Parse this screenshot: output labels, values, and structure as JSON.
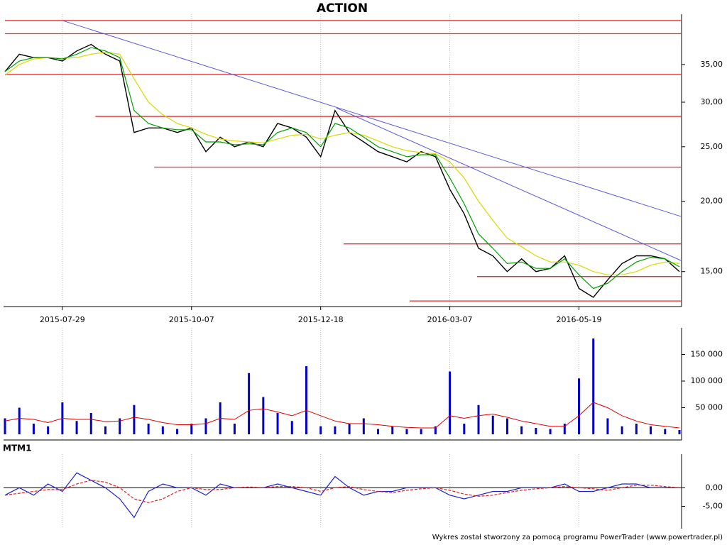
{
  "footer": "Wykres został stworzony za pomocą programu PowerTrader (www.powertrader.pl)",
  "chart_data": [
    {
      "type": "line",
      "title": "ACTION",
      "log": true,
      "categories": [
        null,
        null,
        null,
        null,
        "2015-07-29",
        null,
        null,
        null,
        null,
        null,
        null,
        null,
        null,
        "2015-10-07",
        null,
        null,
        null,
        null,
        null,
        null,
        null,
        null,
        "2015-12-18",
        null,
        null,
        null,
        null,
        null,
        null,
        null,
        null,
        "2016-03-07",
        null,
        null,
        null,
        null,
        null,
        null,
        null,
        null,
        "2016-05-19",
        null,
        null,
        null,
        null,
        null,
        null,
        null
      ],
      "ylim": [
        13,
        43
      ],
      "yticks": [
        {
          "value": 15,
          "label": "15,00"
        },
        {
          "value": 20,
          "label": "20,00"
        },
        {
          "value": 25,
          "label": "25,00"
        },
        {
          "value": 30,
          "label": "30,00"
        },
        {
          "value": 35,
          "label": "35,00"
        }
      ],
      "series": [
        {
          "color": "#000000",
          "values": [
            34,
            36.5,
            36,
            36,
            35.5,
            37,
            38,
            36.5,
            35.5,
            26.5,
            27,
            27,
            26.5,
            27,
            24.5,
            26,
            25,
            25.5,
            25,
            27.5,
            27,
            26,
            24,
            29,
            26.5,
            25.5,
            24.5,
            24,
            23.5,
            24.5,
            24,
            21,
            19,
            16.5,
            16,
            15,
            15.8,
            15,
            15.2,
            16,
            14,
            13.5,
            14.5,
            15.5,
            16,
            16,
            15.8,
            15
          ]
        },
        {
          "color": "#d8d800",
          "values": [
            33.5,
            35,
            35.8,
            36,
            35.9,
            36,
            36.5,
            36.8,
            36.5,
            33,
            30,
            28.5,
            27.5,
            27,
            26.3,
            25.8,
            25.6,
            25.5,
            25.4,
            25.8,
            26.2,
            26.3,
            25.8,
            26.2,
            26.5,
            26.2,
            25.6,
            25,
            24.6,
            24.4,
            24.3,
            23.5,
            22,
            20,
            18.5,
            17.2,
            16.6,
            16,
            15.6,
            15.6,
            15.4,
            15,
            14.8,
            14.8,
            15,
            15.4,
            15.6,
            15.5
          ]
        },
        {
          "color": "#00a000",
          "values": [
            34,
            35.5,
            36,
            36,
            35.8,
            36.5,
            37.5,
            37,
            36,
            29,
            27.5,
            27,
            26.8,
            26.8,
            25.5,
            25.5,
            25.2,
            25.3,
            25.2,
            26.5,
            27,
            26.5,
            25,
            27.5,
            27,
            26,
            25,
            24.5,
            24,
            24.2,
            24.2,
            22,
            19.8,
            17.5,
            16.5,
            15.5,
            15.6,
            15.2,
            15.2,
            15.8,
            14.8,
            14,
            14.3,
            15,
            15.6,
            15.9,
            15.8,
            15.3
          ]
        }
      ],
      "levels": [
        {
          "value": 41.9,
          "start": 0
        },
        {
          "value": 39.7,
          "start": 0
        },
        {
          "value": 33.6,
          "start": 0
        },
        {
          "value": 28.3,
          "start": 6.3
        },
        {
          "value": 23.0,
          "start": 10.4
        },
        {
          "value": 16.8,
          "start": 23.6
        },
        {
          "value": 14.7,
          "start": 32.9
        },
        {
          "value": 13.3,
          "start": 28.2
        }
      ],
      "level_color": "#e03030",
      "trendlines": [
        [
          [
            4,
            41.9
          ],
          [
            47.1,
            18.8
          ]
        ],
        [
          [
            23.1,
            29.3
          ],
          [
            47.1,
            15.7
          ]
        ]
      ],
      "trend_color": "#5a5ae0"
    },
    {
      "type": "bar",
      "color": "#0000c8",
      "values": [
        30000,
        50000,
        20000,
        15000,
        60000,
        25000,
        40000,
        15000,
        30000,
        55000,
        20000,
        15000,
        10000,
        20000,
        30000,
        60000,
        20000,
        115000,
        70000,
        40000,
        25000,
        128000,
        15000,
        15000,
        20000,
        30000,
        10000,
        15000,
        10000,
        10000,
        15000,
        118000,
        20000,
        55000,
        35000,
        30000,
        15000,
        12000,
        10000,
        20000,
        105000,
        180000,
        30000,
        15000,
        20000,
        15000,
        10000,
        8000
      ],
      "line": {
        "color": "#e00000",
        "values": [
          25000,
          30000,
          28000,
          22000,
          30000,
          28000,
          28000,
          24000,
          25000,
          32000,
          28000,
          22000,
          18000,
          18000,
          20000,
          30000,
          28000,
          45000,
          48000,
          42000,
          35000,
          45000,
          35000,
          25000,
          20000,
          20000,
          18000,
          15000,
          13000,
          12000,
          12000,
          35000,
          30000,
          35000,
          38000,
          32000,
          25000,
          20000,
          15000,
          15000,
          35000,
          60000,
          50000,
          35000,
          25000,
          18000,
          15000,
          12000
        ]
      },
      "ylim": [
        0,
        200000
      ],
      "yticks": [
        {
          "value": 50000,
          "label": "50 000"
        },
        {
          "value": 100000,
          "label": "100 000"
        },
        {
          "value": 150000,
          "label": "150 000"
        }
      ]
    },
    {
      "type": "line",
      "title": "MTM1",
      "baseline": 0,
      "ylim": [
        -11,
        9
      ],
      "yticks": [
        {
          "value": 0,
          "label": "0,00"
        },
        {
          "value": -5,
          "label": "-5,00"
        }
      ],
      "series": [
        {
          "color": "#2020d0",
          "values": [
            -2,
            0,
            -2,
            1,
            -1,
            4,
            2,
            0,
            -3,
            -8,
            -1,
            1,
            0,
            0,
            -2,
            1,
            0,
            0,
            0,
            1,
            0,
            -1,
            -2,
            3,
            0,
            -2,
            -1,
            -1,
            0,
            0,
            0,
            -2,
            -3,
            -2,
            -1,
            -1,
            0,
            0,
            0,
            1,
            -1,
            -1,
            0,
            1,
            1,
            0,
            0,
            0
          ]
        },
        {
          "color": "#e02020",
          "dash": true,
          "values": [
            -2,
            -1.5,
            -1,
            -0.5,
            -0.5,
            1,
            2,
            1.5,
            0,
            -3,
            -4,
            -3,
            -1,
            0,
            -0.5,
            -0.5,
            0,
            0.2,
            0,
            0.3,
            0.3,
            0,
            -1,
            0,
            0.3,
            -0.5,
            -1,
            -1.3,
            -0.7,
            -0.3,
            0,
            -0.7,
            -1.7,
            -2.3,
            -2,
            -1.3,
            -0.7,
            -0.3,
            0,
            0.3,
            0,
            -0.3,
            -0.7,
            0,
            0.7,
            0.7,
            0.3,
            0
          ]
        }
      ]
    }
  ]
}
